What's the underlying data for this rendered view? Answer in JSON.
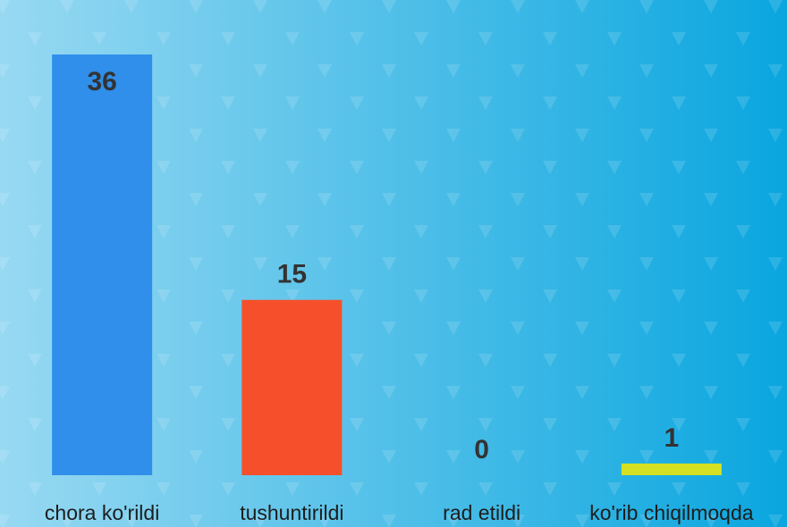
{
  "chart_data": {
    "type": "bar",
    "categories": [
      "chora ko'rildi",
      "tushuntirildi",
      "rad etildi",
      "ko'rib chiqilmoqda"
    ],
    "values": [
      36,
      15,
      0,
      1
    ],
    "colors": [
      "#2f8fea",
      "#f5502b",
      "#1e90e0",
      "#d4e021"
    ]
  }
}
